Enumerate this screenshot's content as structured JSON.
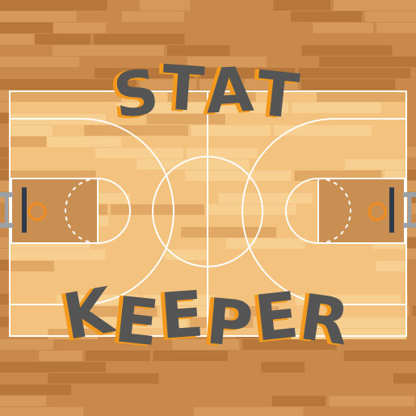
{
  "title": {
    "line1": "STAT",
    "line2": "KEEPER"
  },
  "colors": {
    "outer_floor": "#c8894a",
    "outer_plank_dark": "#b7773a",
    "outer_plank_light": "#d59a5a",
    "court_floor": "#f2c27e",
    "court_plank_dark": "#e0a864",
    "court_plank_light": "#f7cf91",
    "paint": "#c98e52",
    "lines": "#ffffff",
    "title_fill": "#555555",
    "title_shadow": "#f39a1e",
    "rim": "#f28c1e",
    "hoop_stand": "#9aa0a6",
    "backboard": "#2f3a4a"
  }
}
